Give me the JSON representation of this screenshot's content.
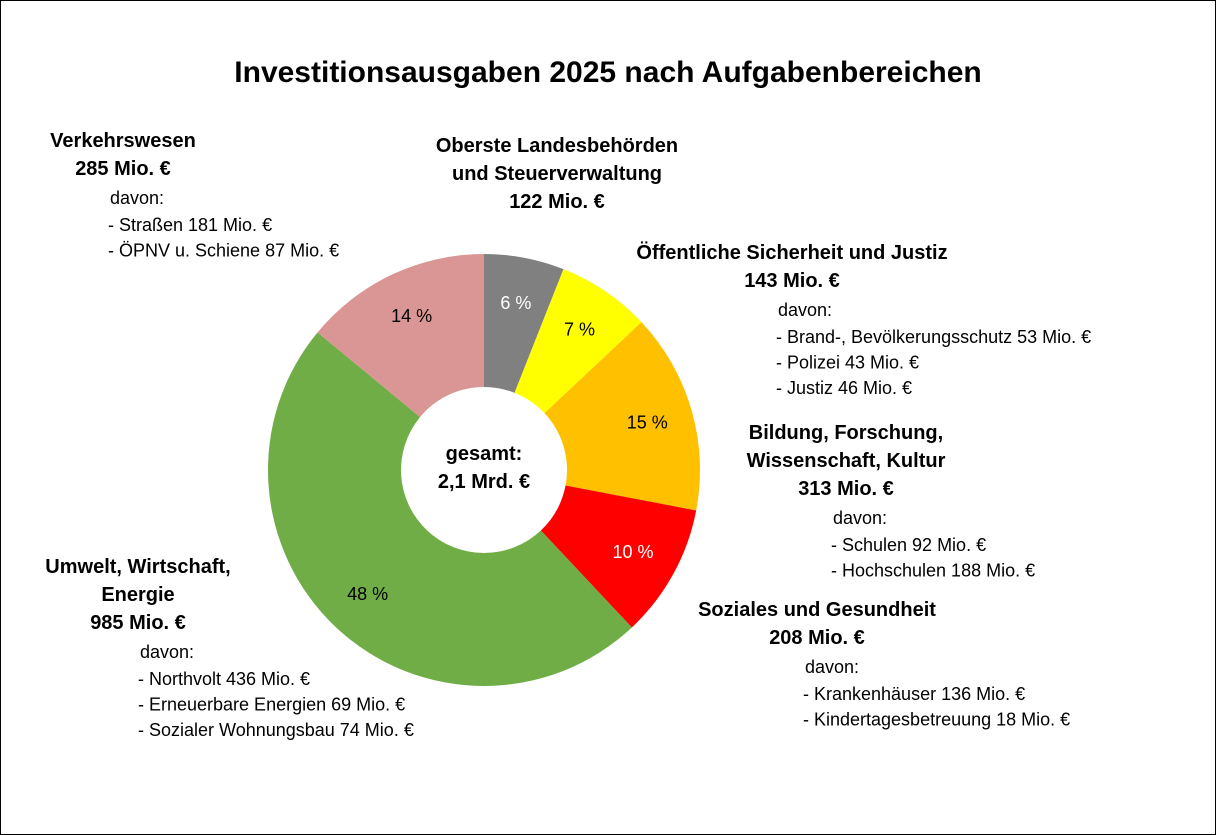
{
  "chart_data": {
    "type": "pie",
    "title": "Investitionsausgaben 2025 nach Aufgabenbereichen",
    "center_label": [
      "gesamt:",
      "2,1 Mrd. €"
    ],
    "values": [
      6,
      7,
      15,
      10,
      48,
      14
    ],
    "value_labels": [
      "6 %",
      "7 %",
      "15 %",
      "10 %",
      "48 %",
      "14 %"
    ],
    "colors": [
      "#808080",
      "#ffff00",
      "#ffc000",
      "#ff0000",
      "#70ad47",
      "#d99694"
    ],
    "labels": [
      {
        "name": [
          "Oberste Landesbehörden",
          "und Steuerverwaltung"
        ],
        "amount": "122 Mio. €"
      },
      {
        "name": [
          "Öffentliche Sicherheit und Justiz"
        ],
        "amount": "143 Mio. €",
        "davon": "davon:",
        "items": [
          "- Brand-, Bevölkerungsschutz  53 Mio. €",
          "- Polizei 43 Mio. €",
          "- Justiz 46 Mio. €"
        ]
      },
      {
        "name": [
          "Bildung, Forschung,",
          "Wissenschaft, Kultur"
        ],
        "amount": "313 Mio. €",
        "davon": "davon:",
        "items": [
          "- Schulen 92 Mio. €",
          "- Hochschulen 188 Mio. €"
        ]
      },
      {
        "name": [
          "Soziales und Gesundheit"
        ],
        "amount": "208 Mio. €",
        "davon": "davon:",
        "items": [
          "- Krankenhäuser 136 Mio. €",
          "- Kindertagesbetreuung  18 Mio. €"
        ]
      },
      {
        "name": [
          "Umwelt, Wirtschaft,",
          "Energie"
        ],
        "amount": "985 Mio. €",
        "davon": "davon:",
        "items": [
          "- Northvolt 436 Mio. €",
          "- Erneuerbare Energien 69 Mio. €",
          "- Sozialer Wohnungsbau 74 Mio. €"
        ]
      },
      {
        "name": [
          "Verkehrswesen"
        ],
        "amount": "285 Mio. €",
        "davon": "davon:",
        "items": [
          "- Straßen 181 Mio. €",
          "- ÖPNV u. Schiene 87 Mio. €"
        ]
      }
    ]
  }
}
